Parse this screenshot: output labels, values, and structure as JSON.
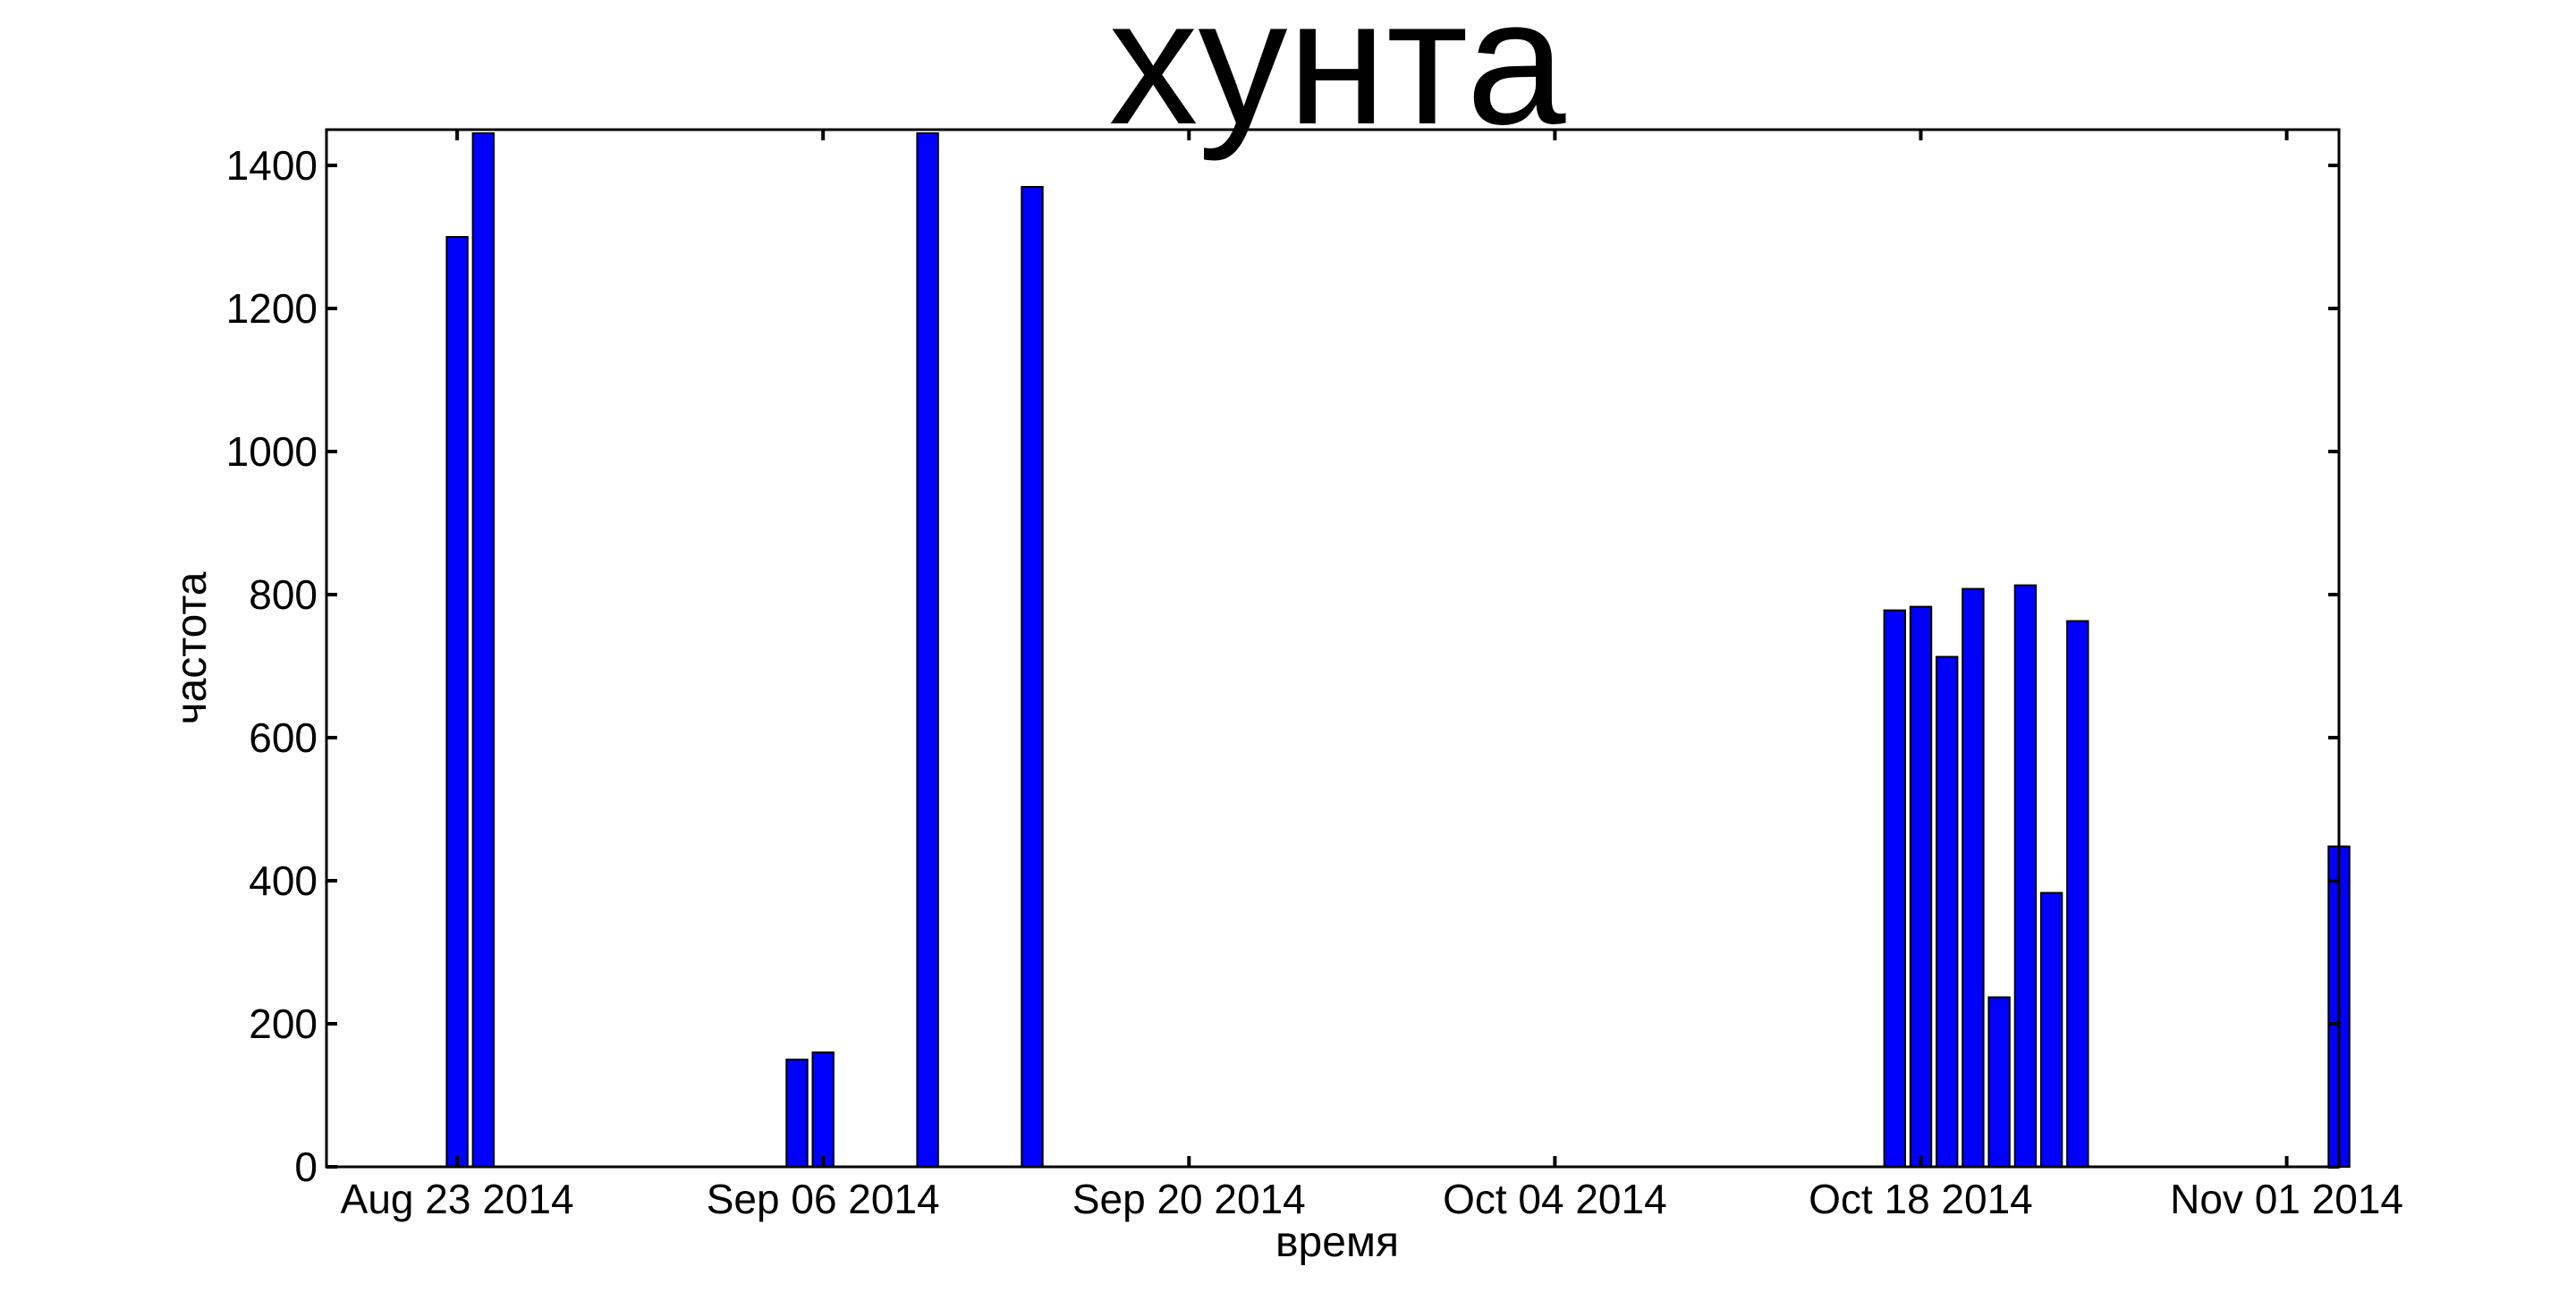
{
  "chart_data": {
    "type": "bar",
    "title": "хунта",
    "xlabel": "время",
    "ylabel": "частота",
    "ylim": [
      0,
      1450
    ],
    "xlim": [
      "2014-08-18",
      "2014-11-03"
    ],
    "yticks": [
      0,
      200,
      400,
      600,
      800,
      1000,
      1200,
      1400
    ],
    "ytick_labels": [
      "0",
      "200",
      "400",
      "600",
      "800",
      "1000",
      "1200",
      "1400"
    ],
    "xticks": [
      "2014-08-23",
      "2014-09-06",
      "2014-09-20",
      "2014-10-04",
      "2014-10-18",
      "2014-11-01"
    ],
    "xtick_labels": [
      "Aug 23 2014",
      "Sep 06 2014",
      "Sep 20 2014",
      "Oct 04 2014",
      "Oct 18 2014",
      "Nov 01 2014"
    ],
    "grid": false,
    "bar_color": "#0000ff",
    "series": [
      {
        "dates": [
          "2014-08-23",
          "2014-08-24",
          "2014-09-05",
          "2014-09-06",
          "2014-09-10",
          "2014-09-14",
          "2014-10-17",
          "2014-10-18",
          "2014-10-19",
          "2014-10-20",
          "2014-10-21",
          "2014-10-22",
          "2014-10-23",
          "2014-10-24",
          "2014-11-03"
        ],
        "values": [
          1300,
          1445,
          150,
          160,
          1445,
          1370,
          778,
          783,
          713,
          808,
          237,
          813,
          383,
          763,
          448
        ]
      }
    ]
  }
}
